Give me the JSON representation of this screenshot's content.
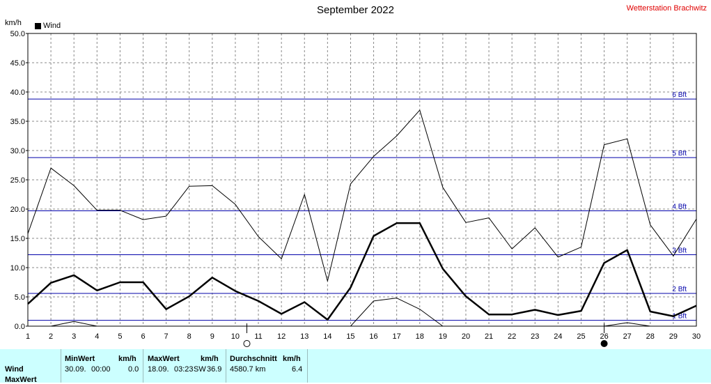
{
  "title": "September 2022",
  "station": "Wetterstation Brachwitz",
  "unit_label": "km/h",
  "legend_label": "Wind",
  "colors": {
    "series": "#000000",
    "beaufort_lines": "#0000aa",
    "beaufort_text": "#0000aa",
    "grid": "#888888",
    "stats_bg": "#ccffff",
    "station_text": "#e00000"
  },
  "chart_data": {
    "type": "line",
    "title": "September 2022",
    "ylabel": "km/h",
    "ylim": [
      0,
      50
    ],
    "xlim": [
      1,
      30
    ],
    "x_ticks": [
      1,
      2,
      3,
      4,
      5,
      6,
      7,
      8,
      9,
      10,
      11,
      12,
      13,
      14,
      15,
      16,
      17,
      18,
      19,
      20,
      21,
      22,
      23,
      24,
      25,
      26,
      27,
      28,
      29,
      30
    ],
    "y_ticks": [
      "0.0",
      "5.0",
      "10.0",
      "15.0",
      "20.0",
      "25.0",
      "30.0",
      "35.0",
      "40.0",
      "45.0",
      "50.0"
    ],
    "grid": true,
    "legend": {
      "position": "top-left",
      "entries": [
        "Wind"
      ]
    },
    "series": [
      {
        "name": "Wind",
        "style": "mean",
        "x": [
          1,
          2,
          3,
          4,
          5,
          6,
          7,
          8,
          9,
          10,
          11,
          12,
          13,
          14,
          15,
          16,
          17,
          18,
          19,
          20,
          21,
          22,
          23,
          24,
          25,
          26,
          27,
          28,
          29,
          30
        ],
        "values": [
          3.8,
          7.4,
          8.7,
          6.1,
          7.5,
          7.5,
          2.9,
          5.1,
          8.3,
          6.0,
          4.3,
          2.1,
          4.1,
          1.1,
          6.6,
          15.4,
          17.6,
          17.6,
          9.8,
          5.1,
          2.0,
          2.0,
          2.8,
          1.9,
          2.6,
          10.8,
          13.0,
          2.5,
          1.7,
          3.5
        ]
      },
      {
        "style": "max",
        "x": [
          1,
          2,
          3,
          4,
          5,
          6,
          7,
          8,
          9,
          10,
          11,
          12,
          13,
          14,
          15,
          16,
          17,
          18,
          19,
          20,
          21,
          22,
          23,
          24,
          25,
          26,
          27,
          28,
          29,
          30
        ],
        "values": [
          15.8,
          27.0,
          24.0,
          19.8,
          19.8,
          18.2,
          18.8,
          23.9,
          24.0,
          20.8,
          15.3,
          11.5,
          22.5,
          7.7,
          24.3,
          29.0,
          32.5,
          36.9,
          23.7,
          17.7,
          18.5,
          13.2,
          16.8,
          11.8,
          13.5,
          31.0,
          32.0,
          17.3,
          12.0,
          18.3
        ]
      },
      {
        "style": "min",
        "segments": [
          {
            "x": [
              2,
              3,
              4
            ],
            "values": [
              0.0,
              0.8,
              0.0
            ]
          },
          {
            "x": [
              15,
              16,
              17,
              18,
              19
            ],
            "values": [
              0.0,
              4.3,
              4.8,
              2.9,
              0.0
            ]
          },
          {
            "x": [
              26,
              27,
              28
            ],
            "values": [
              0.0,
              0.6,
              0.0
            ]
          }
        ]
      }
    ],
    "reference_lines": [
      {
        "label": "1 Bft",
        "value": 1.0
      },
      {
        "label": "2 Bft",
        "value": 5.6
      },
      {
        "label": "3 Bft",
        "value": 12.2
      },
      {
        "label": "4 Bft",
        "value": 19.7
      },
      {
        "label": "5 Bft",
        "value": 28.8
      },
      {
        "label": "6 Bft",
        "value": 38.8
      }
    ],
    "moon_phases": [
      {
        "day": 10.5,
        "phase": "full"
      },
      {
        "day": 26,
        "phase": "new"
      }
    ]
  },
  "stats": {
    "row_label": "Wind",
    "row_label_2": "MaxWert",
    "min": {
      "header": "MinWert",
      "unit": "km/h",
      "date": "30.09.",
      "time": "00:00",
      "value": "0.0"
    },
    "max": {
      "header": "MaxWert",
      "unit": "km/h",
      "date": "18.09.",
      "time": "03:23",
      "dir": "SW",
      "value": "36.9"
    },
    "avg": {
      "header": "Durchschnitt",
      "unit": "km/h",
      "distance": "4580.7 km",
      "value": "6.4"
    }
  }
}
